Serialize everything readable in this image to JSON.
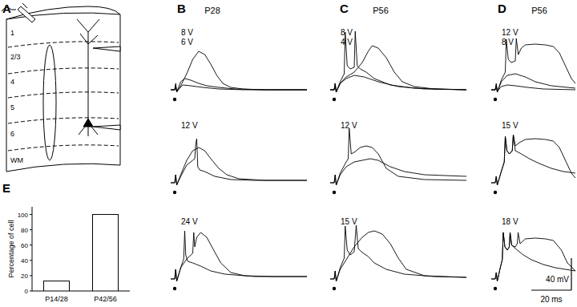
{
  "schematic": {
    "label": "A",
    "layers": [
      "1",
      "2/3",
      "4",
      "5",
      "6",
      "WM"
    ]
  },
  "recordings": [
    {
      "label": "B",
      "age": "P28",
      "rows": [
        {
          "voltages": [
            "8 V",
            "6 V"
          ],
          "traces": [
            {
              "t": [
                -2,
                0,
                0.5,
                1,
                3,
                6,
                9,
                12,
                15,
                18,
                21,
                24,
                28,
                34,
                45,
                66
              ],
              "v": [
                0,
                0,
                8,
                -3,
                5,
                20,
                38,
                48,
                44,
                32,
                18,
                8,
                3,
                1,
                0,
                0
              ]
            },
            {
              "t": [
                -2,
                0,
                0.5,
                1,
                3,
                5,
                8,
                12,
                16,
                22,
                30,
                45,
                66
              ],
              "v": [
                0,
                0,
                6,
                -3,
                10,
                14,
                12,
                8,
                5,
                3,
                1,
                0,
                0
              ]
            },
            {
              "t": [
                -2,
                0,
                0.5,
                1,
                4,
                8,
                14,
                22,
                35,
                66
              ],
              "v": [
                0,
                0,
                4,
                -2,
                6,
                5,
                3,
                1,
                0,
                0
              ]
            }
          ]
        },
        {
          "voltages": [
            "12 V"
          ],
          "traces": [
            {
              "t": [
                -2,
                0,
                0.5,
                1,
                3,
                6,
                9,
                10,
                10.5,
                11,
                11.5,
                12.5,
                15,
                20,
                28,
                40,
                66
              ],
              "v": [
                0,
                0,
                10,
                -3,
                8,
                22,
                28,
                30,
                48,
                55,
                20,
                16,
                14,
                8,
                4,
                3,
                3
              ]
            },
            {
              "t": [
                -2,
                0,
                0.5,
                1,
                3,
                6,
                9,
                12,
                15,
                18,
                22,
                26,
                32,
                45,
                66
              ],
              "v": [
                0,
                0,
                10,
                -3,
                10,
                28,
                40,
                44,
                40,
                30,
                18,
                10,
                5,
                3,
                3
              ]
            }
          ]
        },
        {
          "voltages": [
            "24 V"
          ],
          "traces": [
            {
              "t": [
                -2,
                0,
                0.5,
                1,
                3,
                4.5,
                5,
                5.5,
                6.5,
                9,
                13,
                18,
                25,
                40,
                66
              ],
              "v": [
                0,
                0,
                12,
                -3,
                14,
                25,
                60,
                30,
                22,
                20,
                16,
                10,
                6,
                3,
                3
              ]
            },
            {
              "t": [
                -2,
                0,
                0.5,
                1,
                3,
                6,
                9,
                9.5,
                10,
                11,
                13,
                16,
                19,
                23,
                28,
                35,
                50,
                66
              ],
              "v": [
                0,
                0,
                12,
                -3,
                14,
                25,
                32,
                58,
                40,
                52,
                58,
                52,
                38,
                20,
                8,
                4,
                3,
                3
              ]
            }
          ]
        }
      ]
    },
    {
      "label": "C",
      "age": "P56",
      "rows": [
        {
          "voltages": [
            "8 V",
            "4 V"
          ],
          "traces": [
            {
              "t": [
                -2,
                0,
                0.5,
                1,
                3,
                5,
                5.5,
                6.5,
                8,
                10,
                10.5,
                11.5,
                13,
                16,
                20,
                28,
                40,
                66
              ],
              "v": [
                0,
                0,
                8,
                -3,
                10,
                20,
                72,
                30,
                26,
                28,
                73,
                30,
                26,
                22,
                14,
                6,
                2,
                0
              ]
            },
            {
              "t": [
                -2,
                0,
                0.5,
                1,
                3,
                6,
                10,
                14,
                17,
                19,
                22,
                26,
                30,
                34,
                40,
                50,
                66
              ],
              "v": [
                0,
                0,
                8,
                -3,
                8,
                16,
                22,
                34,
                48,
                55,
                52,
                40,
                22,
                10,
                4,
                1,
                0
              ]
            },
            {
              "t": [
                -2,
                0,
                0.5,
                1,
                3,
                6,
                10,
                15,
                22,
                32,
                45,
                66
              ],
              "v": [
                0,
                0,
                6,
                -3,
                8,
                14,
                18,
                16,
                10,
                4,
                1,
                0
              ]
            }
          ]
        },
        {
          "voltages": [
            "12 V"
          ],
          "traces": [
            {
              "t": [
                -2,
                0,
                0.5,
                1,
                3,
                6,
                7,
                7.5,
                8.5,
                10,
                13,
                16,
                19,
                22,
                26,
                32,
                45,
                66
              ],
              "v": [
                0,
                0,
                10,
                -3,
                12,
                26,
                30,
                68,
                36,
                38,
                44,
                46,
                44,
                36,
                18,
                8,
                4,
                3
              ]
            },
            {
              "t": [
                -2,
                0,
                0.5,
                1,
                3,
                6,
                10,
                14,
                18,
                22,
                28,
                35,
                45,
                66
              ],
              "v": [
                0,
                0,
                10,
                -3,
                10,
                20,
                26,
                28,
                30,
                28,
                20,
                14,
                10,
                8
              ]
            }
          ]
        },
        {
          "voltages": [
            "15 V"
          ],
          "traces": [
            {
              "t": [
                -2,
                0,
                0.5,
                1,
                3,
                5,
                5.5,
                6.5,
                8,
                10,
                11,
                12,
                14,
                17,
                20,
                26,
                35,
                50,
                66
              ],
              "v": [
                0,
                0,
                10,
                -3,
                14,
                26,
                66,
                36,
                30,
                34,
                67,
                38,
                33,
                28,
                20,
                12,
                6,
                3,
                2
              ]
            },
            {
              "t": [
                -2,
                0,
                0.5,
                1,
                3,
                6,
                10,
                14,
                17,
                20,
                24,
                28,
                32,
                36,
                45,
                66
              ],
              "v": [
                0,
                0,
                10,
                -3,
                12,
                24,
                40,
                52,
                58,
                60,
                56,
                44,
                26,
                12,
                4,
                2
              ]
            }
          ]
        }
      ]
    },
    {
      "label": "D",
      "age": "P56",
      "rows": [
        {
          "voltages": [
            "12 V",
            "8 V"
          ],
          "traces": [
            {
              "t": [
                -2,
                0,
                0.5,
                1,
                3,
                5,
                5.5,
                6.5,
                8,
                10,
                10.5,
                11.5,
                13,
                15,
                20,
                25,
                29,
                32,
                35,
                38,
                40
              ],
              "v": [
                0,
                0,
                8,
                -3,
                12,
                22,
                63,
                38,
                34,
                36,
                64,
                44,
                52,
                56,
                57,
                56,
                54,
                46,
                30,
                14,
                8
              ]
            },
            {
              "t": [
                -2,
                0,
                0.5,
                1,
                3,
                6,
                10,
                15,
                20,
                28,
                40
              ],
              "v": [
                0,
                0,
                6,
                -3,
                10,
                18,
                20,
                16,
                10,
                5,
                2
              ]
            },
            {
              "t": [
                -2,
                0,
                0.5,
                1,
                3,
                6,
                10,
                16,
                24,
                40
              ],
              "v": [
                0,
                0,
                5,
                -2,
                4,
                6,
                5,
                3,
                1,
                0
              ]
            }
          ]
        },
        {
          "voltages": [
            "15 V"
          ],
          "traces": [
            {
              "t": [
                -2,
                0,
                0.5,
                1,
                3,
                4.5,
                5,
                5.8,
                7,
                8.5,
                9,
                10,
                12,
                15,
                20,
                25,
                29,
                32,
                35,
                38,
                40
              ],
              "v": [
                0,
                0,
                8,
                -3,
                14,
                26,
                58,
                40,
                36,
                40,
                60,
                46,
                50,
                54,
                55,
                54,
                52,
                44,
                28,
                12,
                6
              ]
            },
            {
              "t": [
                -2,
                0,
                0.5,
                1,
                3,
                4.5,
                5,
                5.8,
                7,
                8.5,
                9,
                10,
                13,
                17,
                22,
                28,
                34,
                40
              ],
              "v": [
                0,
                0,
                8,
                -3,
                14,
                26,
                58,
                40,
                36,
                40,
                60,
                40,
                36,
                30,
                24,
                18,
                14,
                12
              ]
            }
          ]
        },
        {
          "voltages": [
            "18 V"
          ],
          "traces": [
            {
              "t": [
                -2,
                0,
                0.5,
                1,
                2.5,
                3.5,
                4,
                4.8,
                6,
                7,
                7.4,
                8.2,
                10,
                11,
                11.4,
                12.4,
                15,
                20,
                25,
                29,
                33,
                36,
                40
              ],
              "v": [
                0,
                0,
                8,
                -3,
                14,
                24,
                58,
                40,
                36,
                40,
                58,
                42,
                40,
                44,
                58,
                44,
                50,
                51,
                50,
                48,
                36,
                20,
                10
              ]
            },
            {
              "t": [
                -2,
                0,
                0.5,
                1,
                2.5,
                3.5,
                4,
                4.8,
                6,
                7,
                7.4,
                8.2,
                11,
                14,
                18,
                24,
                30,
                40
              ],
              "v": [
                0,
                0,
                8,
                -3,
                14,
                24,
                58,
                40,
                36,
                40,
                58,
                42,
                36,
                30,
                24,
                18,
                14,
                10
              ]
            }
          ]
        }
      ]
    }
  ],
  "scale_bar": {
    "voltage": 40,
    "voltage_label": "40 mV",
    "time": 20,
    "time_label": "20 ms"
  },
  "chart_data": {
    "type": "bar",
    "title": "E",
    "ylabel": "Percentage of cell",
    "categories": [
      "P14/28",
      "P42/56"
    ],
    "values": [
      13,
      100
    ],
    "color": "#ffffff",
    "ylim": [
      0,
      110
    ],
    "yticks": [
      0,
      20,
      40,
      60,
      80,
      100
    ]
  }
}
